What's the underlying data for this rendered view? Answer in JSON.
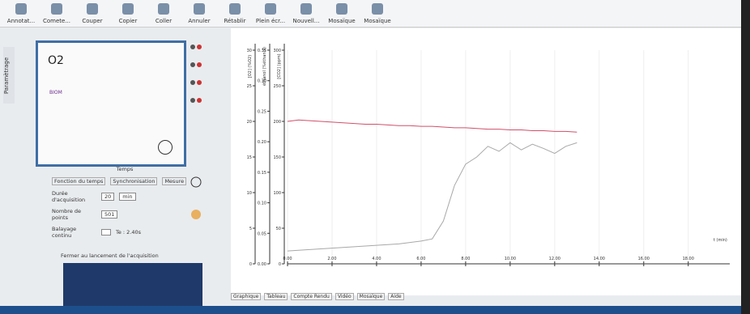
{
  "toolbar": {
    "items": [
      "Annotat...",
      "Comete...",
      "Couper",
      "Copier",
      "Coller",
      "Annuler",
      "Rétablir",
      "Plein écr...",
      "Nouvell...",
      "Mosaïque",
      "Mosaïque"
    ]
  },
  "side_tab": "Paramètrage",
  "sensor_panel": {
    "o2": "O2",
    "biom": "BIOM"
  },
  "settings": {
    "time_label": "Temps",
    "tabs": [
      "Fonction du temps",
      "Synchronisation",
      "Mesure"
    ],
    "duration_label": "Durée d'acquisition",
    "duration_value": "20",
    "duration_unit": "min",
    "points_label": "Nombre de points",
    "points_value": "501",
    "continuous_label": "Balayage continu",
    "te": "Te : 2.40s",
    "close_label": "Fermer au lancement de l'acquisition"
  },
  "chart_data": {
    "type": "line",
    "x_label": "t (min)",
    "y_label": "[O2] (%O2)",
    "y2_label": "éthanol (%éthanol)",
    "y3_label": "[CO2] (ppm)",
    "xlim": [
      0,
      19.5
    ],
    "xticks": [
      {
        "value": 0,
        "label": "0.00"
      },
      {
        "value": 2,
        "label": "2.00"
      },
      {
        "value": 4,
        "label": "4.00"
      },
      {
        "value": 6,
        "label": "6.00"
      },
      {
        "value": 8,
        "label": "8.00"
      },
      {
        "value": 10,
        "label": "10.00"
      },
      {
        "value": 12,
        "label": "12.00"
      },
      {
        "value": 14,
        "label": "14.00"
      },
      {
        "value": 16,
        "label": "16.00"
      },
      {
        "value": 18,
        "label": "18.00"
      }
    ],
    "ylim": [
      0,
      30
    ],
    "yticks": [
      0,
      5,
      10,
      15,
      20,
      25,
      30
    ],
    "y2lim": [
      0,
      0.35
    ],
    "y2ticks": [
      {
        "value": 0,
        "label": "0.00"
      },
      0.05,
      {
        "value": 0.1,
        "label": "0.10"
      },
      0.15,
      {
        "value": 0.2,
        "label": "0.20"
      },
      0.25,
      {
        "value": 0.3,
        "label": "0.30"
      },
      0.35
    ],
    "y3lim": [
      0,
      300
    ],
    "y3ticks": [
      0,
      50,
      100,
      150,
      200,
      250,
      300
    ],
    "grid": true,
    "x": [
      0,
      0.5,
      1,
      1.5,
      2,
      2.5,
      3,
      3.5,
      4,
      4.5,
      5,
      5.5,
      6,
      6.5,
      7,
      7.5,
      8,
      8.5,
      9,
      9.5,
      10,
      10.5,
      11,
      11.5,
      12,
      12.5,
      13
    ],
    "series": [
      {
        "color": "#d0506a",
        "axis": "y3",
        "values": [
          200,
          202,
          201,
          200,
          199,
          198,
          197,
          196,
          196,
          195,
          194,
          194,
          193,
          193,
          192,
          191,
          191,
          190,
          189,
          189,
          188,
          188,
          187,
          187,
          186,
          186,
          185
        ]
      },
      {
        "color": "#a8a8a8",
        "axis": "y3",
        "values": [
          18,
          19,
          20,
          21,
          22,
          23,
          24,
          25,
          26,
          27,
          28,
          30,
          32,
          35,
          60,
          110,
          140,
          150,
          165,
          158,
          170,
          160,
          168,
          162,
          155,
          165,
          170
        ]
      }
    ]
  },
  "bottom_tabs": [
    "Graphique",
    "Tableau",
    "Compte Rendu",
    "Vidéo",
    "Mosaïque",
    "Aide"
  ]
}
